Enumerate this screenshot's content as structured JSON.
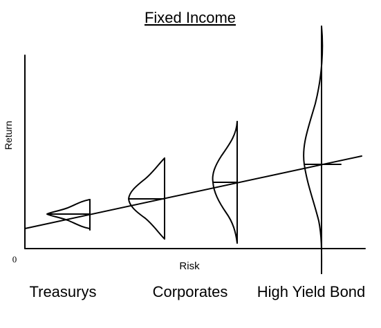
{
  "title": "Fixed Income",
  "axes": {
    "ylabel": "Return",
    "xlabel": "Risk",
    "origin": "0"
  },
  "categories": [
    {
      "label": "Treasurys"
    },
    {
      "label": "Corporates"
    },
    {
      "label": "High Yield Bond"
    }
  ],
  "colors": {
    "ink": "#000000",
    "background": "#ffffff"
  }
}
